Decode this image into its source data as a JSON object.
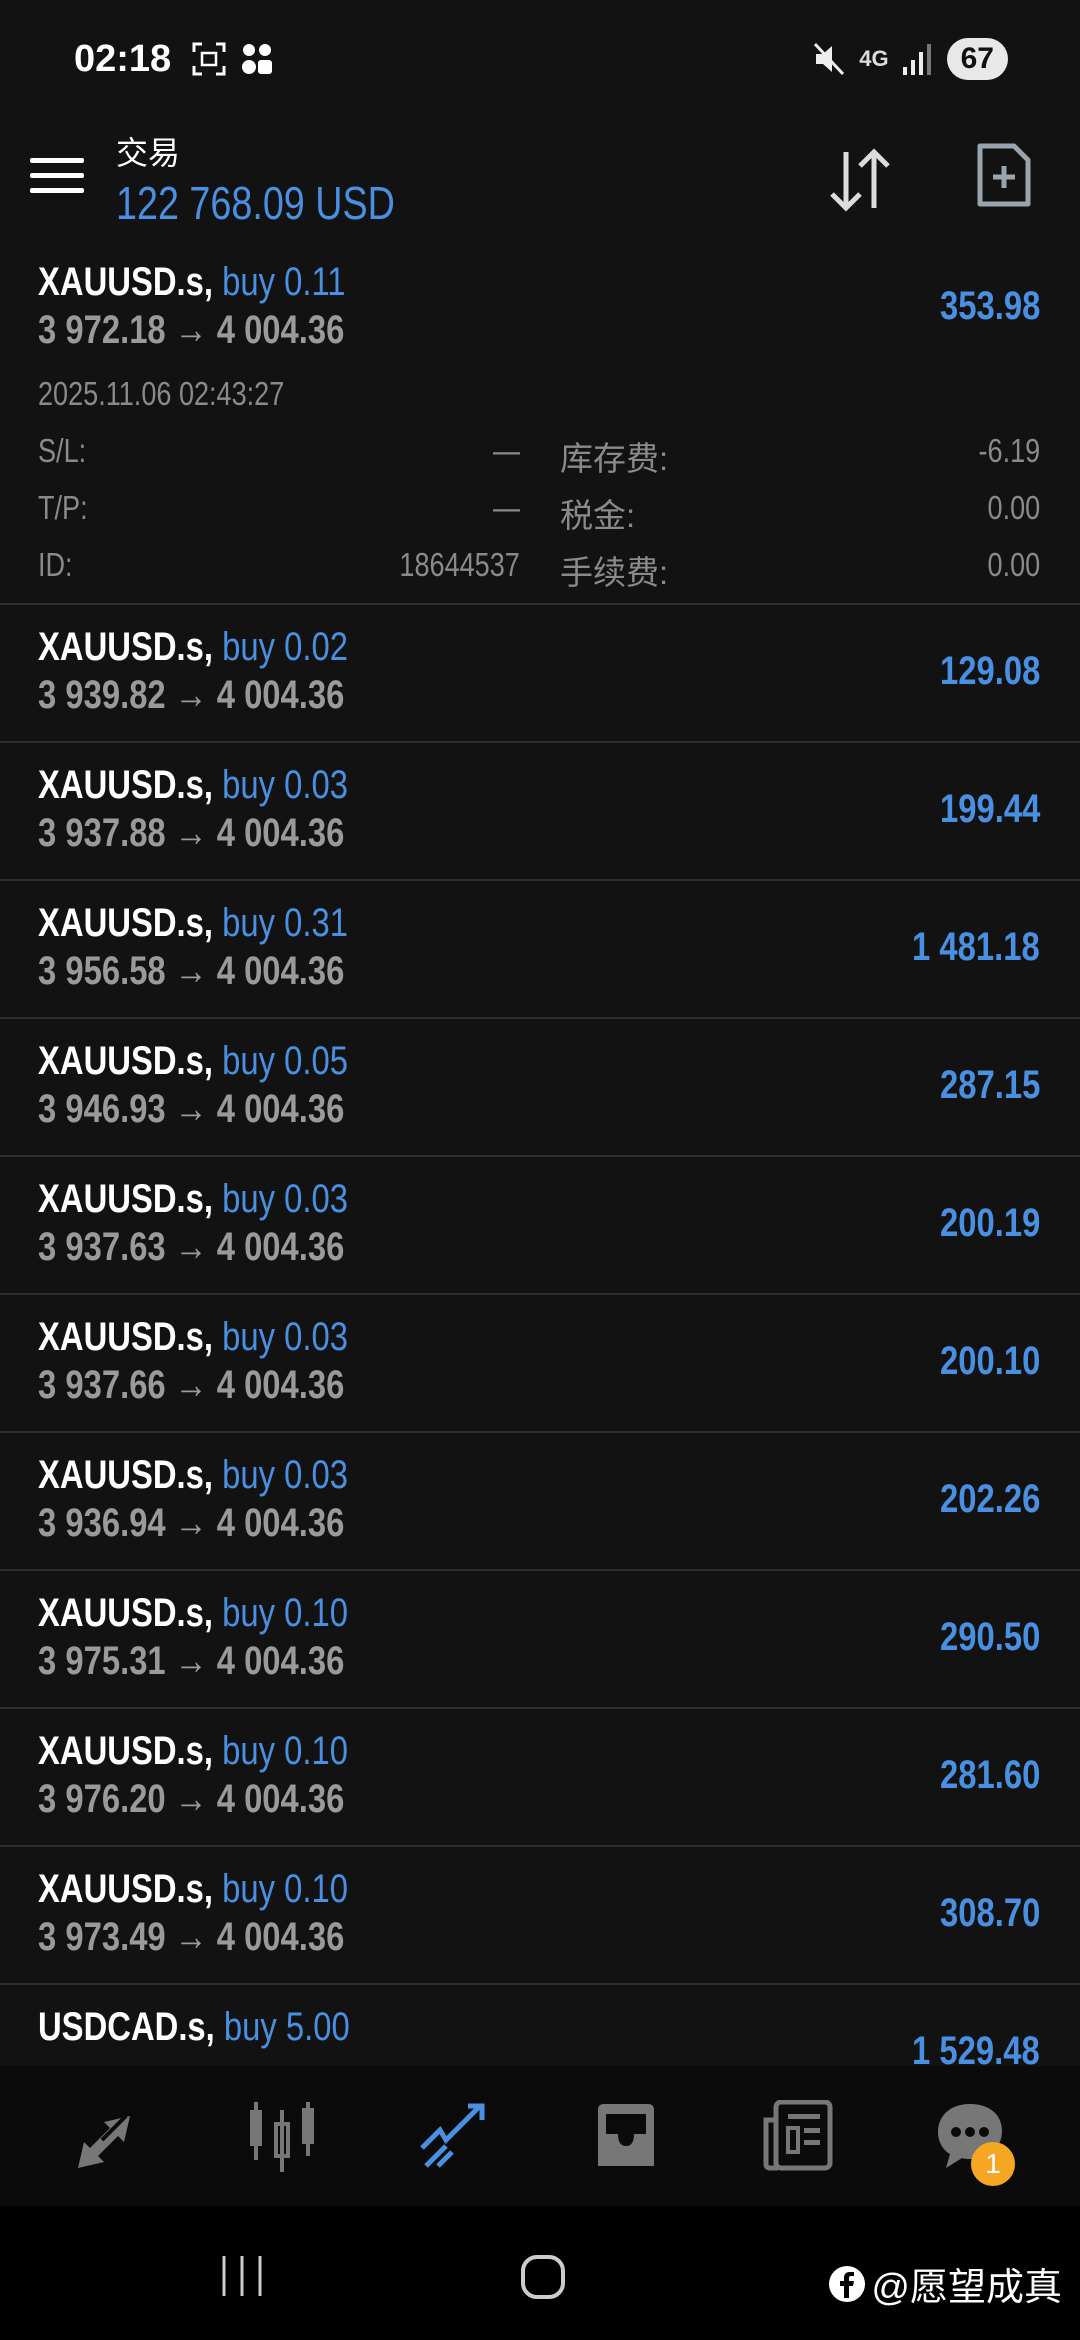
{
  "status_bar": {
    "time": "02:18",
    "network": "4G",
    "battery": "67"
  },
  "header": {
    "title": "交易",
    "balance": "122 768.09 USD"
  },
  "colors": {
    "accent": "#4a90e2",
    "badge": "#f5a623",
    "background": "#121212"
  },
  "expanded_position": {
    "symbol": "XAUUSD.s,",
    "direction": "buy 0.11",
    "open_price": "3 972.18",
    "current_price": "4 004.36",
    "profit": "353.98",
    "open_time": "2025.11.06 02:43:27",
    "sl_label": "S/L:",
    "sl_value": "—",
    "tp_label": "T/P:",
    "tp_value": "—",
    "id_label": "ID:",
    "id_value": "18644537",
    "swap_label": "库存费:",
    "swap_value": "-6.19",
    "tax_label": "税金:",
    "tax_value": "0.00",
    "commission_label": "手续费:",
    "commission_value": "0.00"
  },
  "positions": [
    {
      "symbol": "XAUUSD.s,",
      "direction": "buy 0.02",
      "open_price": "3 939.82",
      "current_price": "4 004.36",
      "profit": "129.08"
    },
    {
      "symbol": "XAUUSD.s,",
      "direction": "buy 0.03",
      "open_price": "3 937.88",
      "current_price": "4 004.36",
      "profit": "199.44"
    },
    {
      "symbol": "XAUUSD.s,",
      "direction": "buy 0.31",
      "open_price": "3 956.58",
      "current_price": "4 004.36",
      "profit": "1 481.18"
    },
    {
      "symbol": "XAUUSD.s,",
      "direction": "buy 0.05",
      "open_price": "3 946.93",
      "current_price": "4 004.36",
      "profit": "287.15"
    },
    {
      "symbol": "XAUUSD.s,",
      "direction": "buy 0.03",
      "open_price": "3 937.63",
      "current_price": "4 004.36",
      "profit": "200.19"
    },
    {
      "symbol": "XAUUSD.s,",
      "direction": "buy 0.03",
      "open_price": "3 937.66",
      "current_price": "4 004.36",
      "profit": "200.10"
    },
    {
      "symbol": "XAUUSD.s,",
      "direction": "buy 0.03",
      "open_price": "3 936.94",
      "current_price": "4 004.36",
      "profit": "202.26"
    },
    {
      "symbol": "XAUUSD.s,",
      "direction": "buy 0.10",
      "open_price": "3 975.31",
      "current_price": "4 004.36",
      "profit": "290.50"
    },
    {
      "symbol": "XAUUSD.s,",
      "direction": "buy 0.10",
      "open_price": "3 976.20",
      "current_price": "4 004.36",
      "profit": "281.60"
    },
    {
      "symbol": "XAUUSD.s,",
      "direction": "buy 0.10",
      "open_price": "3 973.49",
      "current_price": "4 004.36",
      "profit": "308.70"
    },
    {
      "symbol": "USDCAD.s,",
      "direction": "buy 5.00",
      "open_price": "",
      "current_price": "",
      "profit": "1 529.48"
    }
  ],
  "bottom_nav": {
    "items": [
      "quotes-icon",
      "chart-icon",
      "trade-icon",
      "history-icon",
      "news-icon",
      "chat-icon"
    ],
    "active": "trade-icon",
    "chat_badge": "1"
  },
  "watermark": "@愿望成真"
}
